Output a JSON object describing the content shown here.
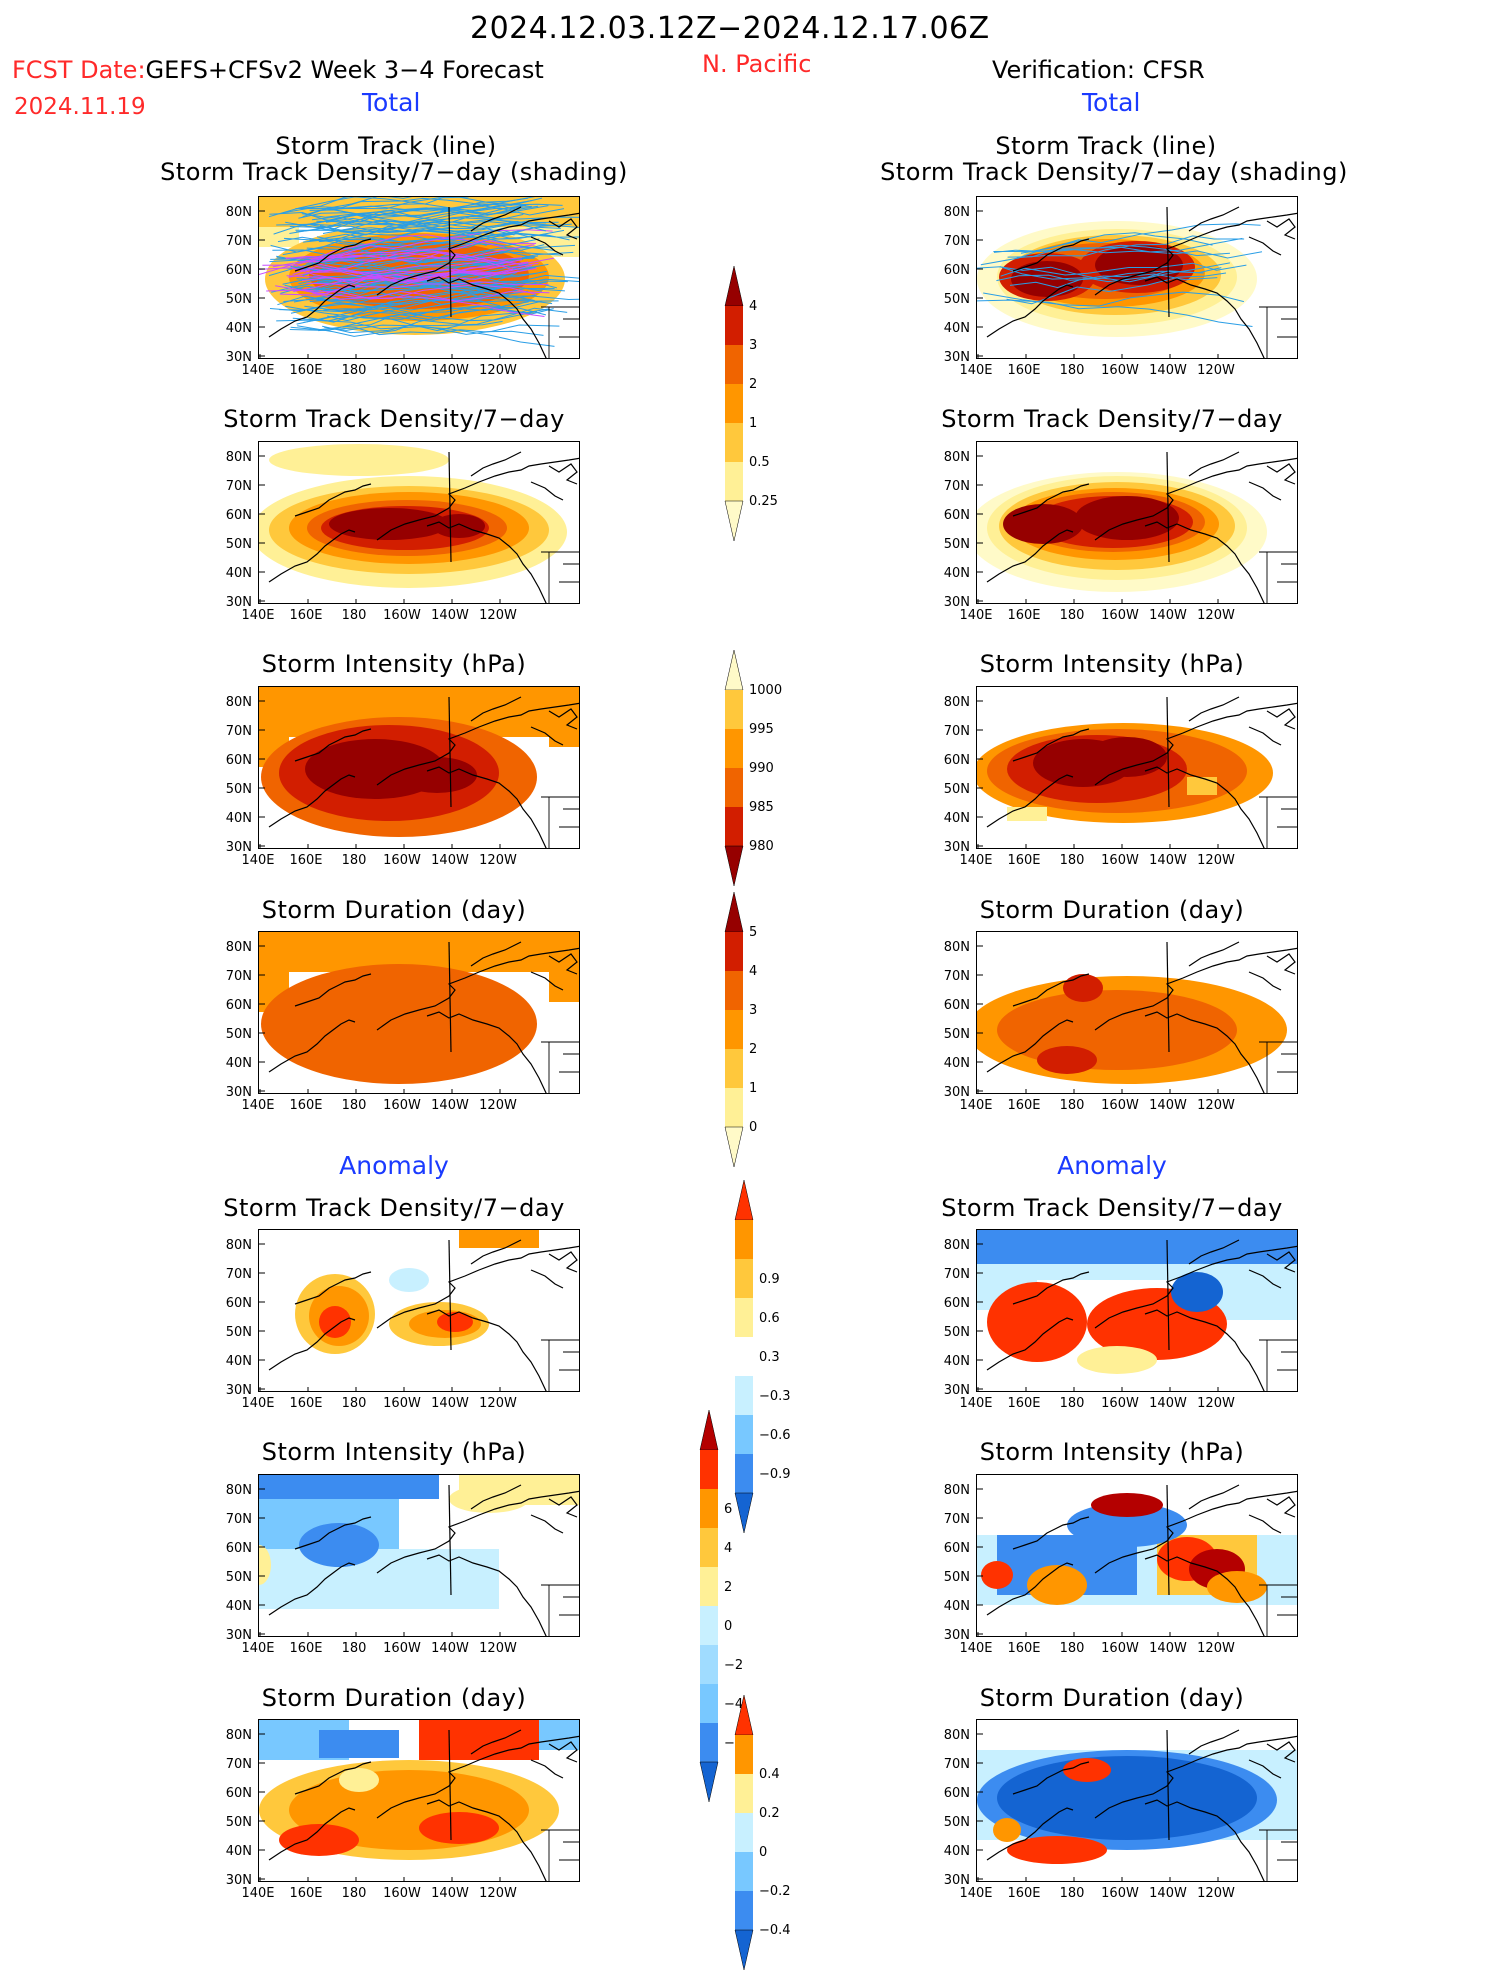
{
  "header": {
    "date_range": "2024.12.03.12Z−2024.12.17.06Z",
    "fcst_label": "FCST Date:",
    "fcst_model": "GEFS+CFSv2 Week 3−4 Forecast",
    "fcst_date": "2024.11.19",
    "region": "N. Pacific",
    "verification": "Verification: CFSR",
    "total_left": "Total",
    "total_right": "Total",
    "anomaly_left": "Anomaly",
    "anomaly_right": "Anomaly"
  },
  "panel_titles": {
    "track_line": "Storm Track (line)",
    "track_shading": "Storm Track Density/7−day (shading)",
    "density": "Storm Track Density/7−day",
    "intensity": "Storm Intensity (hPa)",
    "duration": "Storm Duration (day)"
  },
  "axes": {
    "lat_labels": [
      "80N",
      "70N",
      "60N",
      "50N",
      "40N",
      "30N"
    ],
    "lon_labels": [
      "140E",
      "160E",
      "180",
      "160W",
      "140W",
      "120W"
    ]
  },
  "colorbars": {
    "density_total": {
      "labels": [
        "4",
        "3",
        "2",
        "1",
        "0.5",
        "0.25"
      ],
      "colors": [
        "#960000",
        "#d21e00",
        "#f06400",
        "#ff9600",
        "#ffc83c",
        "#fff096",
        "#fffac8"
      ]
    },
    "intensity_total": {
      "labels": [
        "1000",
        "995",
        "990",
        "985",
        "980"
      ],
      "colors": [
        "#fffac8",
        "#ffc83c",
        "#ff9600",
        "#f06400",
        "#d21e00",
        "#960000"
      ]
    },
    "duration_total": {
      "labels": [
        "5",
        "4",
        "3",
        "2",
        "1",
        "0"
      ],
      "colors": [
        "#960000",
        "#d21e00",
        "#f06400",
        "#ff9600",
        "#ffc83c",
        "#fff096",
        "#fffac8"
      ]
    },
    "density_anom": {
      "labels": [
        "0.9",
        "0.6",
        "0.3",
        "−0.3",
        "−0.6",
        "−0.9"
      ],
      "colors": [
        "#ff3200",
        "#ff9600",
        "#ffc83c",
        "#fff096",
        "#ffffff",
        "#c8f0ff",
        "#78c8ff",
        "#3c8cf0",
        "#1464d2"
      ]
    },
    "intensity_anom": {
      "labels": [
        "6",
        "4",
        "2",
        "0",
        "−2",
        "−4",
        "−6"
      ],
      "colors": [
        "#b40000",
        "#ff3200",
        "#ff9600",
        "#ffc83c",
        "#fff096",
        "#c8f0ff",
        "#a0dcff",
        "#78c8ff",
        "#3c8cf0",
        "#1464d2"
      ]
    },
    "duration_anom": {
      "labels": [
        "0.4",
        "0.2",
        "0",
        "−0.2",
        "−0.4"
      ],
      "colors": [
        "#ff3200",
        "#ff9600",
        "#fff096",
        "#c8f0ff",
        "#78c8ff",
        "#3c8cf0",
        "#1464d2"
      ]
    }
  }
}
